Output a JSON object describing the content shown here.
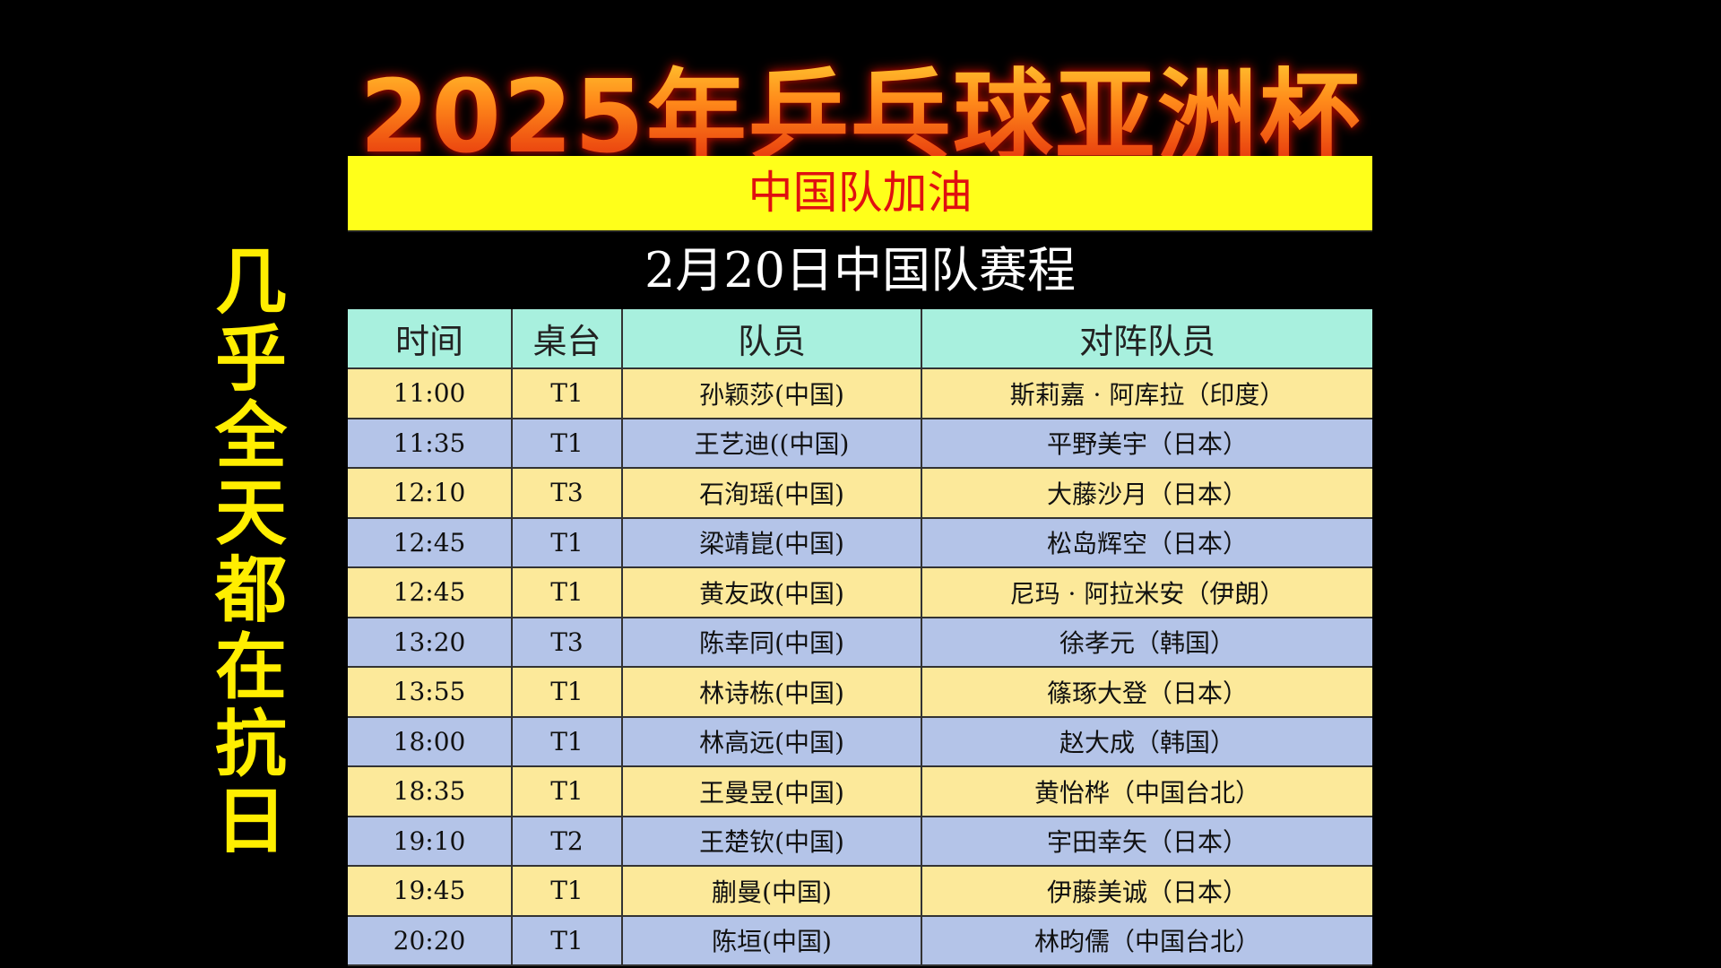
{
  "title": "2025年乒乓球亚洲杯",
  "side_caption": [
    "几",
    "乎",
    "全",
    "天",
    "都",
    "在",
    "抗",
    "日"
  ],
  "banner": "中国队加油",
  "subtitle": "2月20日中国队赛程",
  "colors": {
    "banner_bg": "#ffff1a",
    "banner_text": "#e01010",
    "header_bg": "#a8f0de",
    "row_odd": "#fce99a",
    "row_even": "#b4c4e8",
    "side_text": "#ffee00"
  },
  "headers": [
    "时间",
    "桌台",
    "队员",
    "对阵队员"
  ],
  "rows": [
    [
      "11:00",
      "T1",
      "孙颖莎(中国)",
      "斯莉嘉 · 阿库拉（印度）"
    ],
    [
      "11:35",
      "T1",
      "王艺迪((中国)",
      "平野美宇（日本）"
    ],
    [
      "12:10",
      "T3",
      "石洵瑶(中国)",
      "大藤沙月（日本）"
    ],
    [
      "12:45",
      "T1",
      "梁靖崑(中国)",
      "松岛辉空（日本）"
    ],
    [
      "12:45",
      "T1",
      "黄友政(中国)",
      "尼玛 · 阿拉米安（伊朗）"
    ],
    [
      "13:20",
      "T3",
      "陈幸同(中国)",
      "徐孝元（韩国）"
    ],
    [
      "13:55",
      "T1",
      "林诗栋(中国)",
      "篠琢大登（日本）"
    ],
    [
      "18:00",
      "T1",
      "林高远(中国)",
      "赵大成（韩国）"
    ],
    [
      "18:35",
      "T1",
      "王曼昱(中国)",
      "黄怡桦（中国台北）"
    ],
    [
      "19:10",
      "T2",
      "王楚钦(中国)",
      "宇田幸矢（日本）"
    ],
    [
      "19:45",
      "T1",
      "蒯曼(中国)",
      "伊藤美诚（日本）"
    ],
    [
      "20:20",
      "T1",
      "陈垣(中国)",
      "林昀儒（中国台北）"
    ]
  ]
}
